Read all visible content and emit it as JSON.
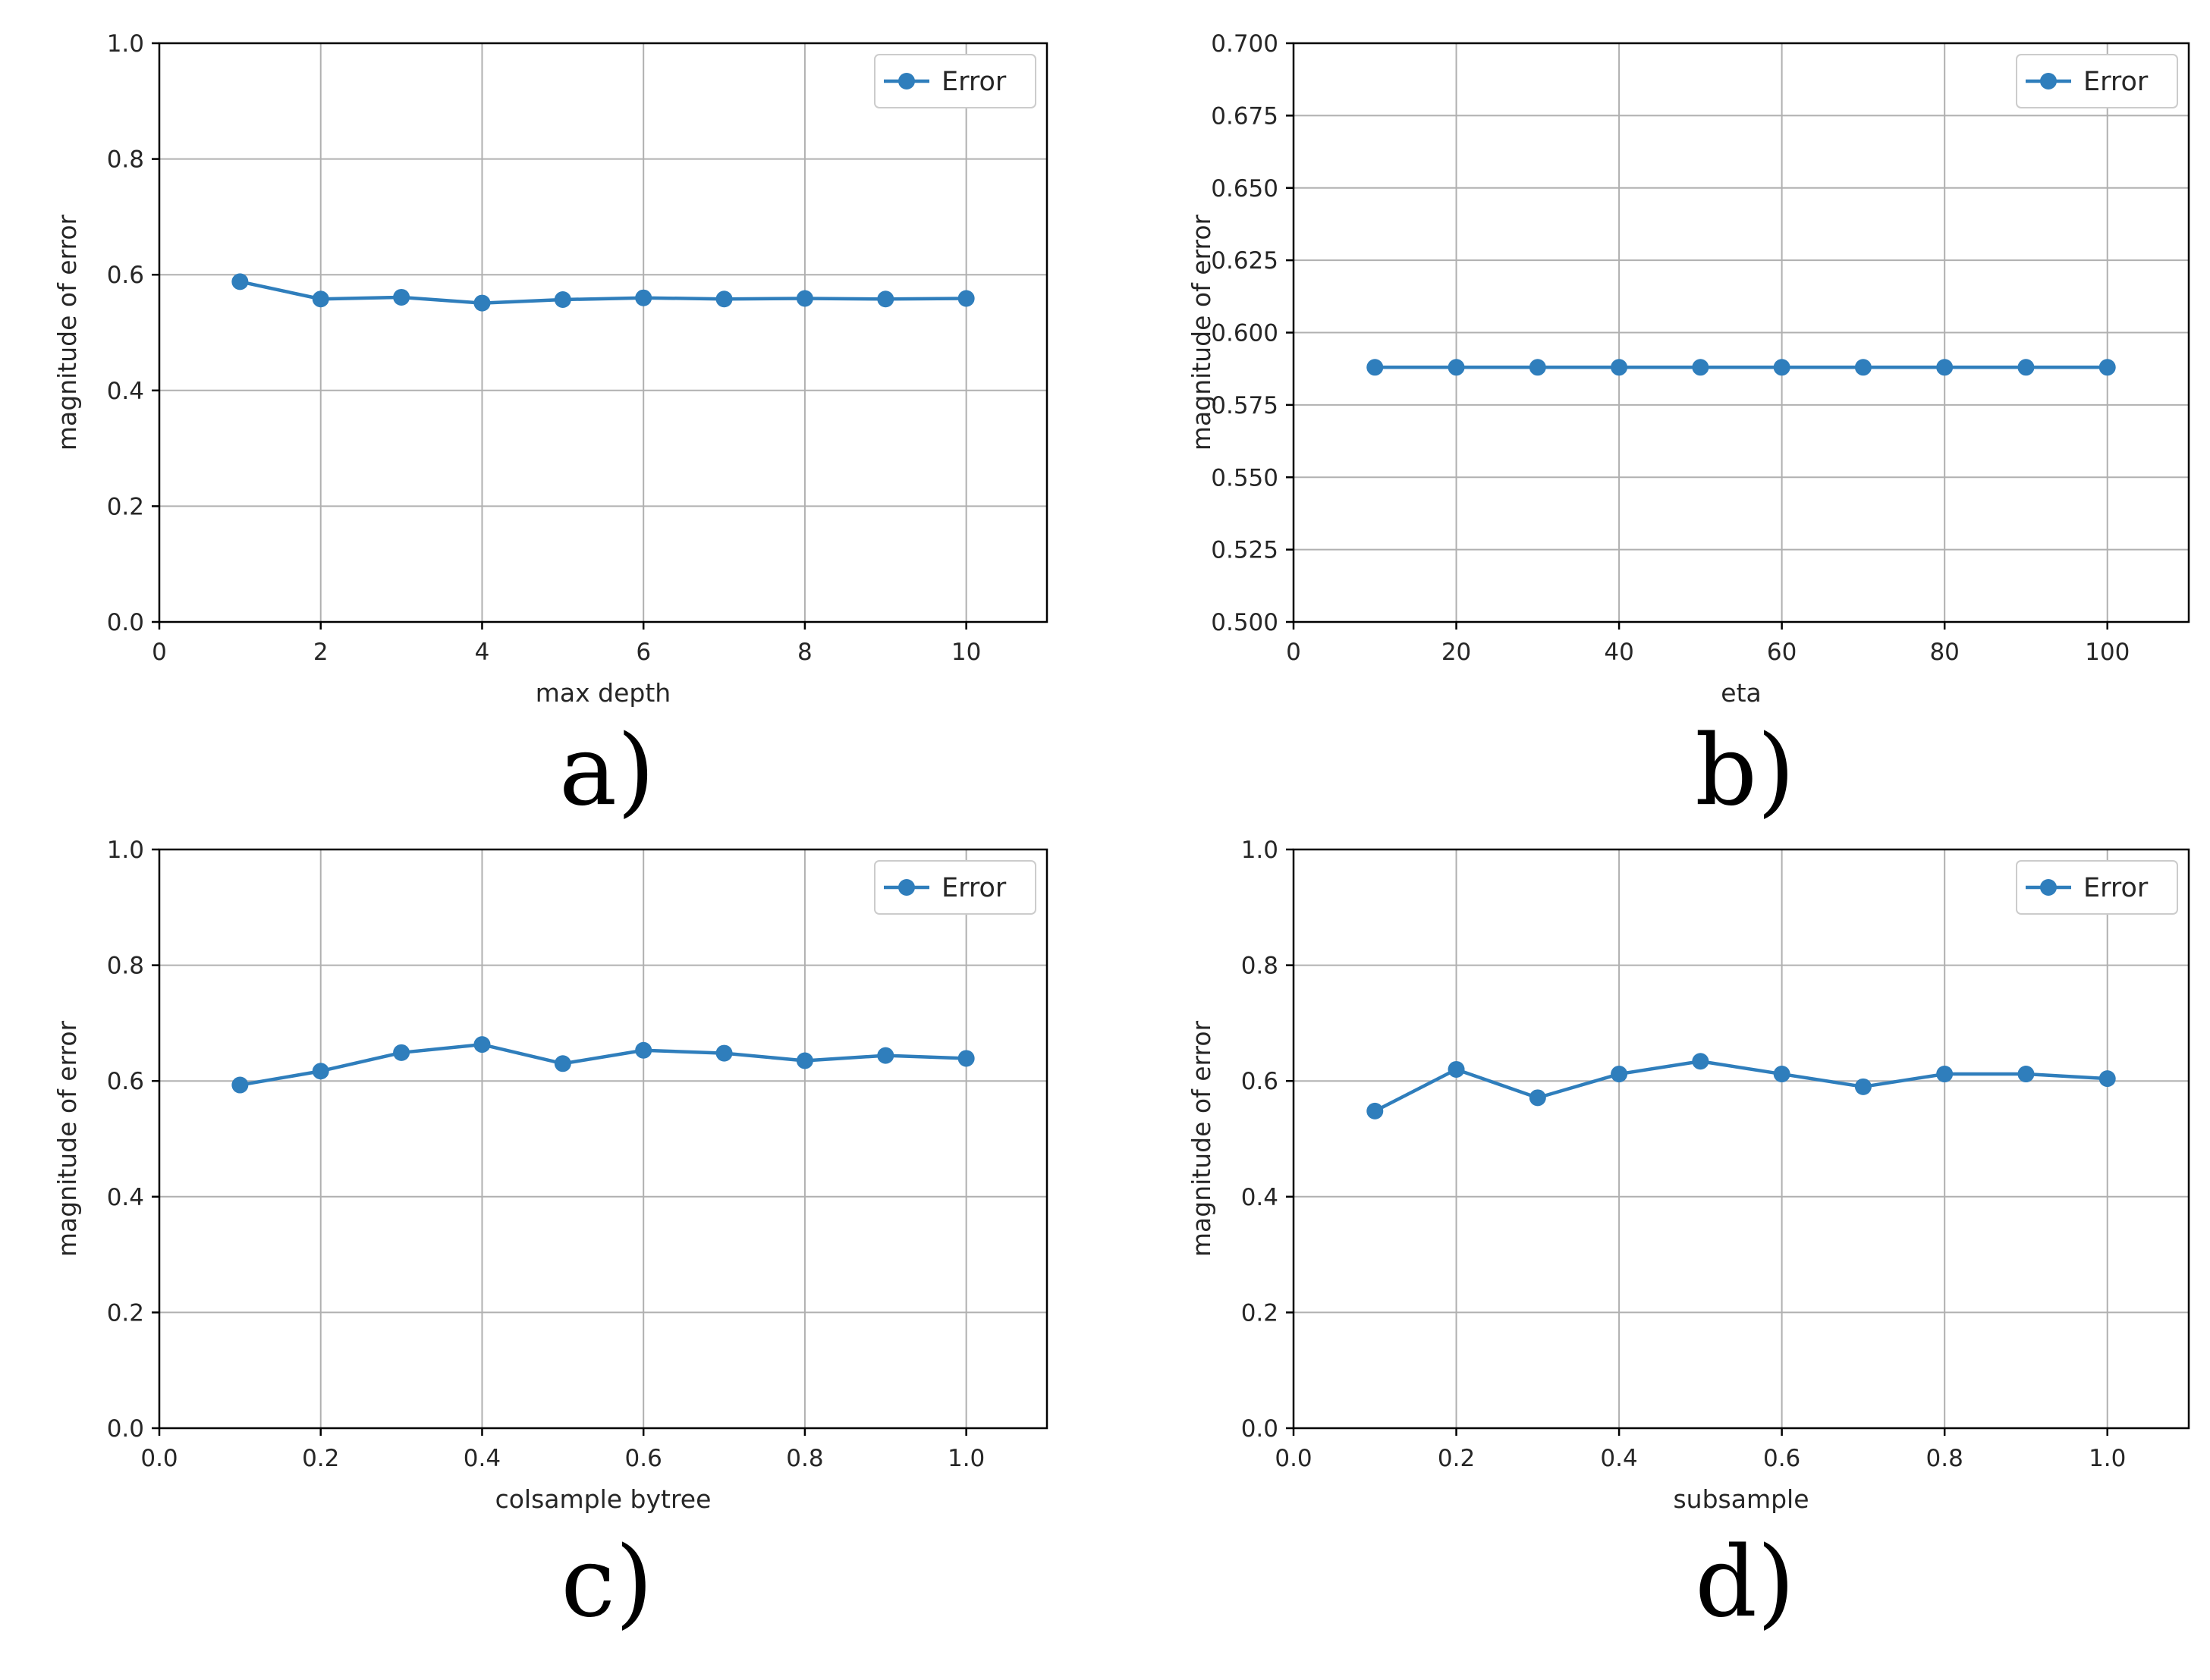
{
  "colors": {
    "series": "#2f7ebc",
    "grid": "#b0b0b0",
    "axis": "#000000"
  },
  "chart_data": [
    {
      "panel": "a)",
      "type": "line",
      "xlabel": "max depth",
      "ylabel": "magnitude of error",
      "xlim": [
        0,
        11
      ],
      "ylim": [
        0,
        1.0
      ],
      "xticks": [
        0,
        2,
        4,
        6,
        8,
        10
      ],
      "xtick_labels": [
        "0",
        "2",
        "4",
        "6",
        "8",
        "10"
      ],
      "yticks": [
        0.0,
        0.2,
        0.4,
        0.6,
        0.8,
        1.0
      ],
      "ytick_labels": [
        "0.0",
        "0.2",
        "0.4",
        "0.6",
        "0.8",
        "1.0"
      ],
      "grid": true,
      "legend": "top-right",
      "series": [
        {
          "name": "Error",
          "x": [
            1,
            2,
            3,
            4,
            5,
            6,
            7,
            8,
            9,
            10
          ],
          "y": [
            0.588,
            0.558,
            0.561,
            0.551,
            0.557,
            0.56,
            0.558,
            0.559,
            0.558,
            0.559
          ]
        }
      ]
    },
    {
      "panel": "b)",
      "type": "line",
      "xlabel": "eta",
      "ylabel": "magnitude of error",
      "xlim": [
        0,
        110
      ],
      "ylim": [
        0.5,
        0.7
      ],
      "xticks": [
        0,
        20,
        40,
        60,
        80,
        100
      ],
      "xtick_labels": [
        "0",
        "20",
        "40",
        "60",
        "80",
        "100"
      ],
      "yticks": [
        0.5,
        0.525,
        0.55,
        0.575,
        0.6,
        0.625,
        0.65,
        0.675,
        0.7
      ],
      "ytick_labels": [
        "0.500",
        "0.525",
        "0.550",
        "0.575",
        "0.600",
        "0.625",
        "0.650",
        "0.675",
        "0.700"
      ],
      "grid": true,
      "legend": "top-right",
      "series": [
        {
          "name": "Error",
          "x": [
            10,
            20,
            30,
            40,
            50,
            60,
            70,
            80,
            90,
            100
          ],
          "y": [
            0.588,
            0.588,
            0.588,
            0.588,
            0.588,
            0.588,
            0.588,
            0.588,
            0.588,
            0.588
          ]
        }
      ]
    },
    {
      "panel": "c)",
      "type": "line",
      "xlabel": "colsample bytree",
      "ylabel": "magnitude of error",
      "xlim": [
        0,
        1.1
      ],
      "ylim": [
        0,
        1.0
      ],
      "xticks": [
        0.0,
        0.2,
        0.4,
        0.6,
        0.8,
        1.0
      ],
      "xtick_labels": [
        "0.0",
        "0.2",
        "0.4",
        "0.6",
        "0.8",
        "1.0"
      ],
      "yticks": [
        0.0,
        0.2,
        0.4,
        0.6,
        0.8,
        1.0
      ],
      "ytick_labels": [
        "0.0",
        "0.2",
        "0.4",
        "0.6",
        "0.8",
        "1.0"
      ],
      "grid": true,
      "legend": "top-right",
      "series": [
        {
          "name": "Error",
          "x": [
            0.1,
            0.2,
            0.3,
            0.4,
            0.5,
            0.6,
            0.7,
            0.8,
            0.9,
            1.0
          ],
          "y": [
            0.593,
            0.617,
            0.649,
            0.663,
            0.63,
            0.653,
            0.648,
            0.635,
            0.644,
            0.639
          ]
        }
      ]
    },
    {
      "panel": "d)",
      "type": "line",
      "xlabel": "subsample",
      "ylabel": "magnitude of error",
      "xlim": [
        0,
        1.1
      ],
      "ylim": [
        0,
        1.0
      ],
      "xticks": [
        0.0,
        0.2,
        0.4,
        0.6,
        0.8,
        1.0
      ],
      "xtick_labels": [
        "0.0",
        "0.2",
        "0.4",
        "0.6",
        "0.8",
        "1.0"
      ],
      "yticks": [
        0.0,
        0.2,
        0.4,
        0.6,
        0.8,
        1.0
      ],
      "ytick_labels": [
        "0.0",
        "0.2",
        "0.4",
        "0.6",
        "0.8",
        "1.0"
      ],
      "grid": true,
      "legend": "top-right",
      "series": [
        {
          "name": "Error",
          "x": [
            0.1,
            0.2,
            0.3,
            0.4,
            0.5,
            0.6,
            0.7,
            0.8,
            0.9,
            1.0
          ],
          "y": [
            0.548,
            0.62,
            0.571,
            0.612,
            0.634,
            0.612,
            0.59,
            0.612,
            0.612,
            0.604
          ]
        }
      ]
    }
  ]
}
